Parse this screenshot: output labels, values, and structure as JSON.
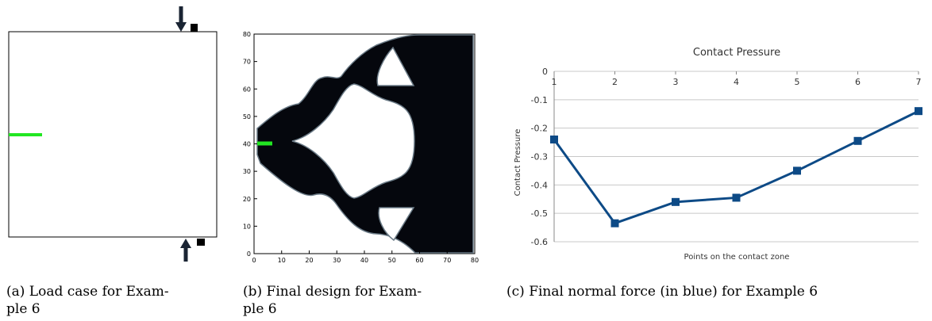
{
  "panel_a": {
    "caption_line1": "(a) Load case for Exam-",
    "caption_line2": "ple 6"
  },
  "panel_b": {
    "caption_line1": "(b) Final design for Exam-",
    "caption_line2": "ple 6",
    "x_ticks": [
      "0",
      "10",
      "20",
      "30",
      "40",
      "50",
      "60",
      "70",
      "80"
    ],
    "y_ticks": [
      "0",
      "10",
      "20",
      "30",
      "40",
      "50",
      "60",
      "70",
      "80"
    ]
  },
  "panel_c": {
    "caption": "(c) Final normal force (in blue) for Example 6",
    "colors": {
      "series": "#0d4a86",
      "grid": "#c8c8c8",
      "axis_text": "#333333"
    }
  },
  "chart_data": {
    "type": "line",
    "title": "Contact Pressure",
    "xlabel": "Points on the contact zone",
    "ylabel": "Contact Pressure",
    "x": [
      1,
      2,
      3,
      4,
      5,
      6,
      7
    ],
    "x_tick_labels": [
      "1",
      "2",
      "3",
      "4",
      "5",
      "6",
      "7"
    ],
    "y_tick_labels": [
      "0",
      "-0.1",
      "-0.2",
      "-0.3",
      "-0.4",
      "-0.5",
      "-0.6"
    ],
    "ylim": [
      -0.6,
      0
    ],
    "series": [
      {
        "values": [
          -0.24,
          -0.535,
          -0.46,
          -0.445,
          -0.35,
          -0.245,
          -0.14
        ]
      }
    ],
    "grid": true,
    "legend": "none"
  }
}
